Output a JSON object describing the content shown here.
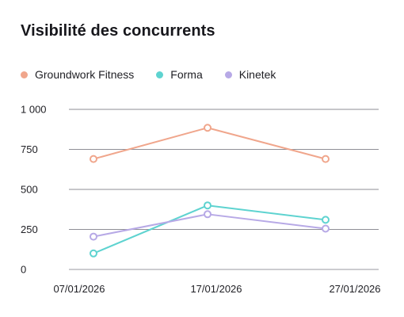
{
  "chart_data": {
    "type": "line",
    "title": "Visibilité des concurrents",
    "xlabel": "",
    "ylabel": "",
    "categories": [
      "07/01/2026",
      "17/01/2026",
      "27/01/2026"
    ],
    "y_ticks": [
      0,
      250,
      500,
      750,
      1000
    ],
    "y_tick_labels": [
      "0",
      "250",
      "500",
      "750",
      "1 000"
    ],
    "ylim": [
      0,
      1000
    ],
    "grid": true,
    "legend_position": "top-left",
    "series": [
      {
        "name": "Groundwork Fitness",
        "color": "#f0a68c",
        "values": [
          690,
          885,
          690
        ]
      },
      {
        "name": "Forma",
        "color": "#5ed3d0",
        "values": [
          100,
          400,
          310
        ]
      },
      {
        "name": "Kinetek",
        "color": "#b7a9e6",
        "values": [
          205,
          345,
          255
        ]
      }
    ]
  }
}
